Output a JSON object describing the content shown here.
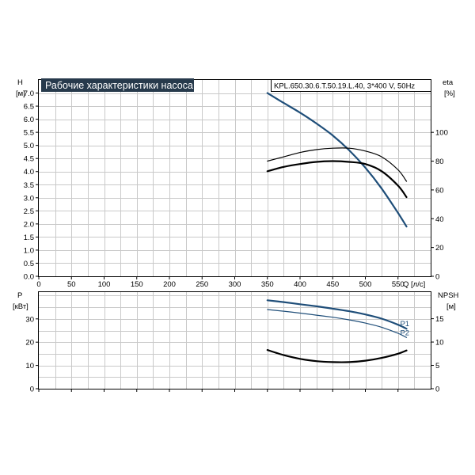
{
  "chart_data": [
    {
      "type": "line",
      "title": "Рабочие характеристики насоса",
      "subtitle": "KPL.650.30.6.T.50.19.L.40, 3*400 V, 50Hz",
      "left_axis": {
        "label_top": "H",
        "label_bottom": "[м]",
        "ylim": [
          0,
          7.5
        ],
        "ticks": [
          "0.0",
          "0.5",
          "1.0",
          "1.5",
          "2.0",
          "2.5",
          "3.0",
          "3.5",
          "4.0",
          "4.5",
          "5.0",
          "5.5",
          "6.0",
          "6.5",
          "7.0"
        ]
      },
      "right_axis": {
        "label_top": "eta",
        "label_bottom": "[%]",
        "ylim": [
          0,
          136.4
        ],
        "ticks": [
          "0",
          "20",
          "40",
          "60",
          "80",
          "100"
        ]
      },
      "x_axis": {
        "label": "Q [л/с]",
        "xlim": [
          0,
          600
        ],
        "ticks": [
          "0",
          "50",
          "100",
          "150",
          "200",
          "250",
          "300",
          "350",
          "400",
          "450",
          "500",
          "550"
        ]
      },
      "grid": true,
      "series": [
        {
          "axis": "left",
          "color": "#1f4e79",
          "width": 2.2,
          "x": [
            350,
            375,
            400,
            425,
            450,
            475,
            500,
            525,
            550,
            563
          ],
          "y": [
            7.0,
            6.62,
            6.25,
            5.84,
            5.38,
            4.82,
            4.15,
            3.35,
            2.42,
            1.9
          ]
        },
        {
          "axis": "right",
          "color": "#000000",
          "width": 1.2,
          "x": [
            350,
            375,
            400,
            425,
            450,
            475,
            500,
            525,
            550,
            563
          ],
          "y": [
            80,
            83,
            86,
            88,
            89,
            89,
            87,
            83,
            74,
            66
          ]
        },
        {
          "axis": "right",
          "color": "#000000",
          "width": 2.2,
          "x": [
            350,
            375,
            400,
            425,
            450,
            475,
            500,
            525,
            550,
            563
          ],
          "y": [
            73,
            76,
            78,
            79.5,
            80,
            79.5,
            78,
            73,
            63,
            55
          ]
        }
      ]
    },
    {
      "type": "line",
      "left_axis": {
        "label_top": "P",
        "label_bottom": "[кВт]",
        "ylim": [
          0,
          41.5
        ],
        "ticks": [
          "0",
          "10",
          "20",
          "30"
        ]
      },
      "right_axis": {
        "label_top": "NPSH",
        "label_bottom": "[м]",
        "ylim": [
          0,
          20.7
        ],
        "ticks": [
          "0",
          "5",
          "10",
          "15"
        ]
      },
      "x_axis": {
        "xlim": [
          0,
          600
        ]
      },
      "grid": true,
      "series": [
        {
          "name": "P1",
          "axis": "left",
          "color": "#1f4e79",
          "width": 2.2,
          "x": [
            350,
            375,
            400,
            425,
            450,
            475,
            500,
            525,
            550,
            563
          ],
          "y": [
            38,
            37.2,
            36.3,
            35.4,
            34.4,
            33.3,
            31.9,
            30.1,
            27.5,
            25.8
          ]
        },
        {
          "name": "P2",
          "axis": "left",
          "color": "#1f4e79",
          "width": 1.2,
          "x": [
            350,
            375,
            400,
            425,
            450,
            475,
            500,
            525,
            550,
            563
          ],
          "y": [
            34,
            33.3,
            32.5,
            31.6,
            30.7,
            29.6,
            28.2,
            26.4,
            23.8,
            22
          ]
        },
        {
          "axis": "right",
          "color": "#000000",
          "width": 2.2,
          "x": [
            350,
            375,
            400,
            425,
            450,
            475,
            500,
            525,
            550,
            563
          ],
          "y": [
            8.3,
            7.2,
            6.4,
            5.9,
            5.7,
            5.7,
            6.0,
            6.6,
            7.5,
            8.2
          ]
        }
      ]
    }
  ]
}
